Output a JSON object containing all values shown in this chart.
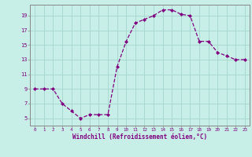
{
  "x": [
    0,
    1,
    2,
    3,
    4,
    5,
    6,
    7,
    8,
    9,
    10,
    11,
    12,
    13,
    14,
    15,
    16,
    17,
    18,
    19,
    20,
    21,
    22,
    23
  ],
  "y": [
    9,
    9,
    9,
    7,
    6,
    5,
    5.5,
    5.5,
    5.5,
    12,
    15.5,
    18,
    18.5,
    19,
    19.8,
    19.8,
    19.2,
    19,
    15.5,
    15.5,
    14,
    13.5,
    13,
    13
  ],
  "line_color": "#800080",
  "marker": "D",
  "marker_size": 2.0,
  "bg_color": "#c8eee8",
  "grid_color": "#a8d8d0",
  "ylim": [
    4.0,
    20.5
  ],
  "xlim": [
    -0.5,
    23.5
  ],
  "yticks": [
    5,
    7,
    9,
    11,
    13,
    15,
    17,
    19
  ],
  "xticks": [
    0,
    1,
    2,
    3,
    4,
    5,
    6,
    7,
    8,
    9,
    10,
    11,
    12,
    13,
    14,
    15,
    16,
    17,
    18,
    19,
    20,
    21,
    22,
    23
  ],
  "xlabel": "Windchill (Refroidissement éolien,°C)",
  "xlabel_color": "#800080",
  "tick_color": "#800080",
  "axis_color": "#888888",
  "linewidth": 0.9,
  "tick_fontsize_x": 4.2,
  "tick_fontsize_y": 5.0,
  "xlabel_fontsize": 5.5
}
